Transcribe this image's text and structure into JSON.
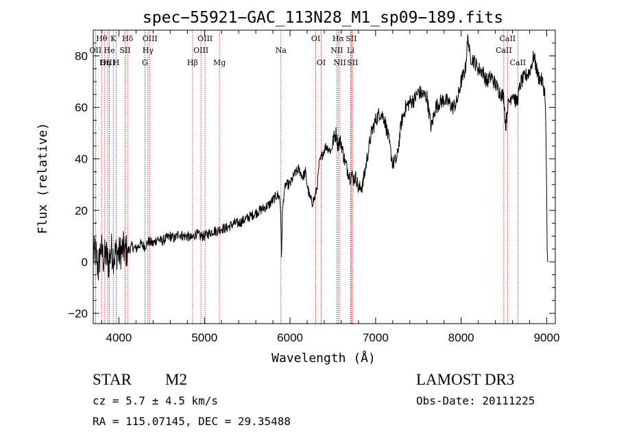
{
  "chart_data": {
    "type": "line",
    "title": "spec−55921−GAC_113N28_M1_sp09−189.fits",
    "xlabel": "Wavelength (Å)",
    "ylabel": "Flux (relative)",
    "xlim": [
      3700,
      9100
    ],
    "ylim": [
      -24,
      90
    ],
    "xticks": [
      4000,
      5000,
      6000,
      7000,
      8000,
      9000
    ],
    "yticks": [
      -20,
      0,
      20,
      40,
      60,
      80
    ],
    "tick_labels": {
      "x": [
        "4000",
        "5000",
        "6000",
        "7000",
        "8000",
        "9000"
      ],
      "y": [
        "−20",
        "0",
        "20",
        "40",
        "60",
        "80"
      ]
    },
    "series": [
      {
        "name": "flux",
        "x": [
          3700,
          3730,
          3760,
          3790,
          3820,
          3850,
          3880,
          3910,
          3940,
          3970,
          4000,
          4050,
          4100,
          4150,
          4200,
          4250,
          4300,
          4350,
          4400,
          4450,
          4500,
          4550,
          4600,
          4650,
          4700,
          4750,
          4800,
          4850,
          4900,
          4950,
          5000,
          5050,
          5100,
          5150,
          5200,
          5250,
          5300,
          5350,
          5400,
          5450,
          5500,
          5550,
          5600,
          5650,
          5700,
          5750,
          5800,
          5850,
          5880,
          5890,
          5900,
          5910,
          5930,
          5950,
          6000,
          6050,
          6100,
          6150,
          6180,
          6200,
          6230,
          6260,
          6290,
          6320,
          6340,
          6380,
          6420,
          6450,
          6480,
          6510,
          6540,
          6560,
          6580,
          6600,
          6620,
          6650,
          6680,
          6700,
          6720,
          6740,
          6760,
          6780,
          6800,
          6850,
          6900,
          6950,
          7000,
          7050,
          7100,
          7150,
          7200,
          7250,
          7300,
          7350,
          7400,
          7450,
          7500,
          7550,
          7600,
          7650,
          7700,
          7750,
          7800,
          7850,
          7900,
          7950,
          8000,
          8050,
          8080,
          8100,
          8150,
          8200,
          8250,
          8300,
          8350,
          8400,
          8450,
          8500,
          8520,
          8540,
          8560,
          8600,
          8640,
          8660,
          8680,
          8700,
          8750,
          8800,
          8850,
          8880,
          8900,
          8950,
          8980,
          8990,
          9000,
          9005,
          9010
        ],
        "y": [
          2,
          4,
          -3,
          6,
          1,
          3,
          -1,
          5,
          2,
          4,
          3,
          5,
          4,
          6,
          5,
          7,
          6,
          8,
          7,
          9,
          8,
          9,
          10,
          9,
          11,
          10,
          10,
          9,
          11,
          10,
          10,
          11,
          12,
          12,
          13,
          13,
          14,
          15,
          15,
          16,
          17,
          18,
          19,
          20,
          21,
          22,
          24,
          26,
          25,
          20,
          1,
          18,
          27,
          30,
          30,
          34,
          36,
          33,
          35,
          30,
          25,
          23,
          25,
          30,
          38,
          42,
          45,
          44,
          43,
          48,
          50,
          45,
          47,
          46,
          42,
          38,
          35,
          33,
          34,
          32,
          33,
          32,
          28,
          30,
          40,
          50,
          55,
          58,
          56,
          48,
          38,
          40,
          54,
          60,
          62,
          63,
          66,
          65,
          64,
          52,
          60,
          62,
          63,
          62,
          60,
          62,
          70,
          75,
          88,
          80,
          78,
          75,
          74,
          70,
          72,
          69,
          66,
          64,
          52,
          60,
          62,
          66,
          62,
          63,
          67,
          70,
          72,
          74,
          80,
          75,
          72,
          70,
          65,
          50,
          25,
          5,
          0
        ]
      }
    ],
    "line_markers": [
      {
        "label": "Hθ",
        "x": 3798,
        "row": 1
      },
      {
        "label": "OII",
        "x": 3727,
        "row": 2
      },
      {
        "label": "OIII",
        "x": 3869,
        "row": 3
      },
      {
        "label": "He",
        "x": 3889,
        "row": 2
      },
      {
        "label": "Hη",
        "x": 3835,
        "row": 3
      },
      {
        "label": "K",
        "x": 3934,
        "row": 1
      },
      {
        "label": "SII",
        "x": 4072,
        "row": 2
      },
      {
        "label": "H",
        "x": 3969,
        "row": 3
      },
      {
        "label": "Hδ",
        "x": 4102,
        "row": 1
      },
      {
        "label": "OIII",
        "x": 4363,
        "row": 1
      },
      {
        "label": "Hγ",
        "x": 4340,
        "row": 2
      },
      {
        "label": "G",
        "x": 4304,
        "row": 3
      },
      {
        "label": "OIII",
        "x": 5007,
        "row": 1
      },
      {
        "label": "OIII",
        "x": 4959,
        "row": 2
      },
      {
        "label": "Hβ",
        "x": 4861,
        "row": 3
      },
      {
        "label": "Mg",
        "x": 5175,
        "row": 3
      },
      {
        "label": "Na",
        "x": 5894,
        "row": 2
      },
      {
        "label": "OI",
        "x": 6300,
        "row": 1
      },
      {
        "label": "OI",
        "x": 6364,
        "row": 3
      },
      {
        "label": "Hα",
        "x": 6563,
        "row": 1
      },
      {
        "label": "SII",
        "x": 6716,
        "row": 1
      },
      {
        "label": "NII",
        "x": 6548,
        "row": 2
      },
      {
        "label": "Li",
        "x": 6708,
        "row": 2
      },
      {
        "label": "NII",
        "x": 6583,
        "row": 3
      },
      {
        "label": "SII",
        "x": 6731,
        "row": 3
      },
      {
        "label": "CaII",
        "x": 8542,
        "row": 1
      },
      {
        "label": "CaII",
        "x": 8498,
        "row": 2
      },
      {
        "label": "CaII",
        "x": 8662,
        "row": 3
      }
    ],
    "colors": {
      "spectrum": "#000000",
      "markers": "#cc0000",
      "axes": "#000000"
    }
  },
  "info": {
    "object_class": "STAR",
    "subclass": "M2",
    "cz": "cz = 5.7 ± 4.5 km/s",
    "coords": "RA = 115.07145, DEC =  29.35488",
    "survey": "LAMOST DR3",
    "obs_date": "Obs-Date: 20111225"
  }
}
